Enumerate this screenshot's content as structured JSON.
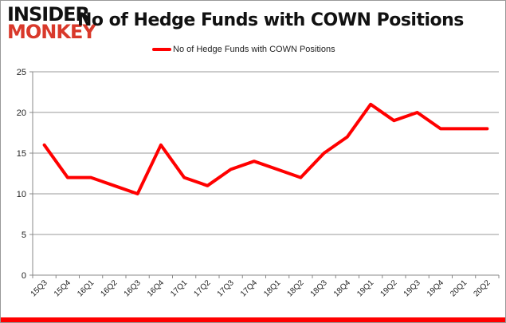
{
  "logo": {
    "line1": "INSIDER",
    "line2": "MONKEY"
  },
  "chart_data": {
    "type": "line",
    "title": "No of Hedge Funds with COWN Positions",
    "categories": [
      "15Q3",
      "15Q4",
      "16Q1",
      "16Q2",
      "16Q3",
      "16Q4",
      "17Q1",
      "17Q2",
      "17Q3",
      "17Q4",
      "18Q1",
      "18Q2",
      "18Q3",
      "18Q4",
      "19Q1",
      "19Q2",
      "19Q3",
      "19Q4",
      "20Q1",
      "20Q2"
    ],
    "series": [
      {
        "name": "No of Hedge Funds with COWN Positions",
        "color": "#ff0000",
        "values": [
          16,
          12,
          12,
          11,
          10,
          16,
          12,
          11,
          13,
          14,
          13,
          12,
          15,
          17,
          21,
          19,
          20,
          18,
          18,
          18
        ]
      }
    ],
    "ylim": [
      0,
      25
    ],
    "yticks": [
      0,
      5,
      10,
      15,
      20,
      25
    ],
    "grid": true,
    "legend": "top"
  }
}
